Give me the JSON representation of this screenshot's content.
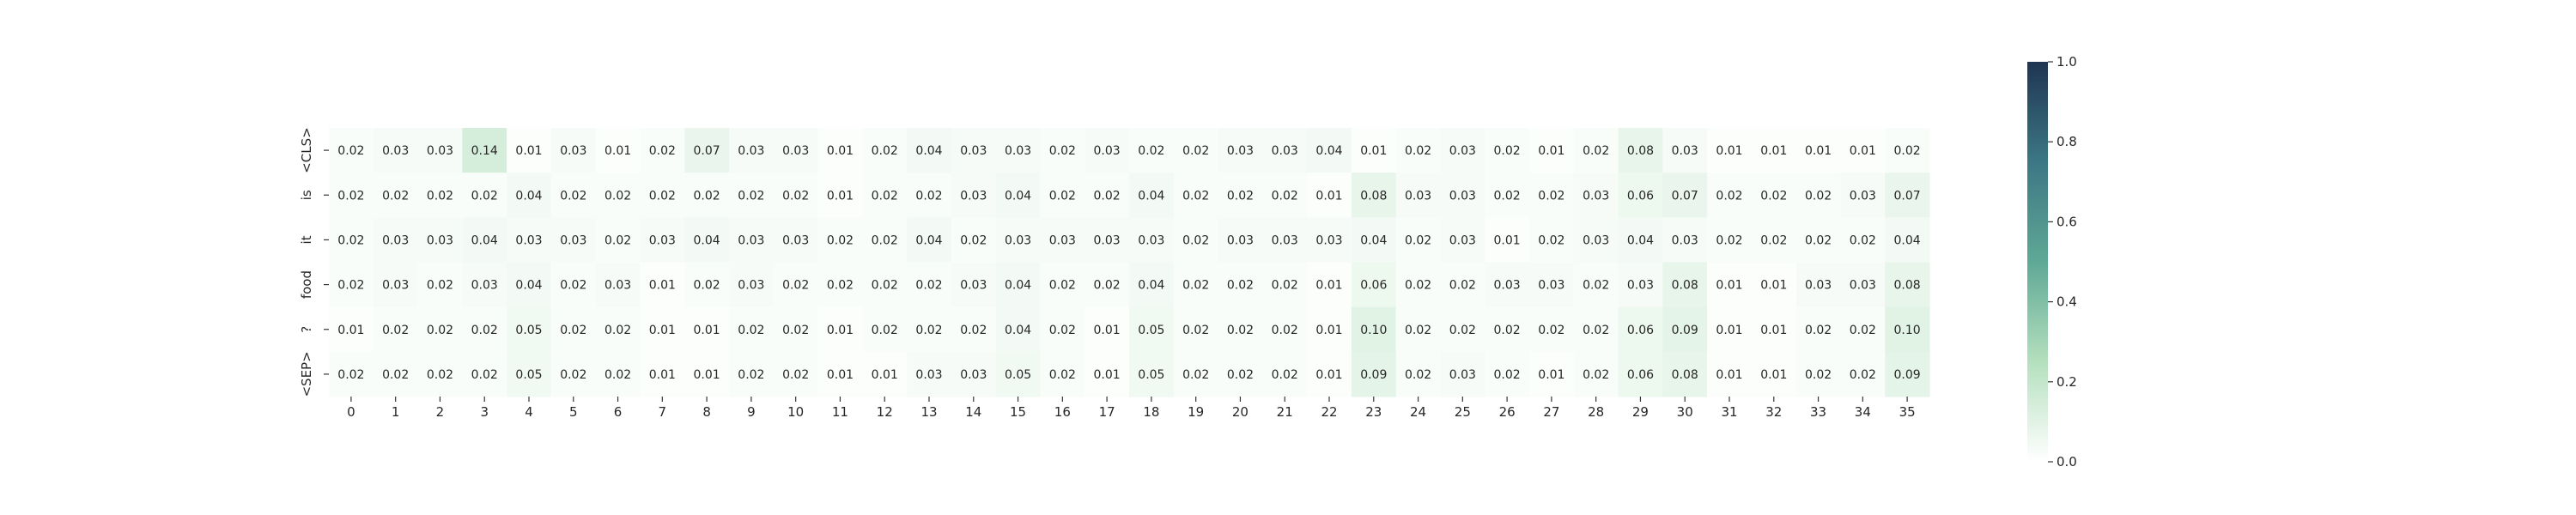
{
  "chart_data": {
    "type": "heatmap",
    "title": "",
    "xlabel": "",
    "ylabel": "",
    "x_labels": [
      "0",
      "1",
      "2",
      "3",
      "4",
      "5",
      "6",
      "7",
      "8",
      "9",
      "10",
      "11",
      "12",
      "13",
      "14",
      "15",
      "16",
      "17",
      "18",
      "19",
      "20",
      "21",
      "22",
      "23",
      "24",
      "25",
      "26",
      "27",
      "28",
      "29",
      "30",
      "31",
      "32",
      "33",
      "34",
      "35"
    ],
    "y_labels": [
      "<CLS>",
      "is",
      "it",
      "food",
      "?",
      "<SEP>"
    ],
    "values": [
      [
        "0.02",
        "0.03",
        "0.03",
        "0.14",
        "0.01",
        "0.03",
        "0.01",
        "0.02",
        "0.07",
        "0.03",
        "0.03",
        "0.01",
        "0.02",
        "0.04",
        "0.03",
        "0.03",
        "0.02",
        "0.03",
        "0.02",
        "0.02",
        "0.03",
        "0.03",
        "0.04",
        "0.01",
        "0.02",
        "0.03",
        "0.02",
        "0.01",
        "0.02",
        "0.08",
        "0.03",
        "0.01",
        "0.01",
        "0.01",
        "0.01",
        "0.02"
      ],
      [
        "0.02",
        "0.02",
        "0.02",
        "0.02",
        "0.04",
        "0.02",
        "0.02",
        "0.02",
        "0.02",
        "0.02",
        "0.02",
        "0.01",
        "0.02",
        "0.02",
        "0.03",
        "0.04",
        "0.02",
        "0.02",
        "0.04",
        "0.02",
        "0.02",
        "0.02",
        "0.01",
        "0.08",
        "0.03",
        "0.03",
        "0.02",
        "0.02",
        "0.03",
        "0.06",
        "0.07",
        "0.02",
        "0.02",
        "0.02",
        "0.03",
        "0.07"
      ],
      [
        "0.02",
        "0.03",
        "0.03",
        "0.04",
        "0.03",
        "0.03",
        "0.02",
        "0.03",
        "0.04",
        "0.03",
        "0.03",
        "0.02",
        "0.02",
        "0.04",
        "0.02",
        "0.03",
        "0.03",
        "0.03",
        "0.03",
        "0.02",
        "0.03",
        "0.03",
        "0.03",
        "0.04",
        "0.02",
        "0.03",
        "0.01",
        "0.02",
        "0.03",
        "0.04",
        "0.03",
        "0.02",
        "0.02",
        "0.02",
        "0.02",
        "0.04"
      ],
      [
        "0.02",
        "0.03",
        "0.02",
        "0.03",
        "0.04",
        "0.02",
        "0.03",
        "0.01",
        "0.02",
        "0.03",
        "0.02",
        "0.02",
        "0.02",
        "0.02",
        "0.03",
        "0.04",
        "0.02",
        "0.02",
        "0.04",
        "0.02",
        "0.02",
        "0.02",
        "0.01",
        "0.06",
        "0.02",
        "0.02",
        "0.03",
        "0.03",
        "0.02",
        "0.03",
        "0.08",
        "0.01",
        "0.01",
        "0.03",
        "0.03",
        "0.08"
      ],
      [
        "0.01",
        "0.02",
        "0.02",
        "0.02",
        "0.05",
        "0.02",
        "0.02",
        "0.01",
        "0.01",
        "0.02",
        "0.02",
        "0.01",
        "0.02",
        "0.02",
        "0.02",
        "0.04",
        "0.02",
        "0.01",
        "0.05",
        "0.02",
        "0.02",
        "0.02",
        "0.01",
        "0.10",
        "0.02",
        "0.02",
        "0.02",
        "0.02",
        "0.02",
        "0.06",
        "0.09",
        "0.01",
        "0.01",
        "0.02",
        "0.02",
        "0.10"
      ],
      [
        "0.02",
        "0.02",
        "0.02",
        "0.02",
        "0.05",
        "0.02",
        "0.02",
        "0.01",
        "0.01",
        "0.02",
        "0.02",
        "0.01",
        "0.01",
        "0.03",
        "0.03",
        "0.05",
        "0.02",
        "0.01",
        "0.05",
        "0.02",
        "0.02",
        "0.02",
        "0.01",
        "0.09",
        "0.02",
        "0.03",
        "0.02",
        "0.01",
        "0.02",
        "0.06",
        "0.08",
        "0.01",
        "0.01",
        "0.02",
        "0.02",
        "0.09"
      ]
    ],
    "colorbar": {
      "min": 0.0,
      "max": 1.0,
      "ticks": [
        "0.0",
        "0.2",
        "0.4",
        "0.6",
        "0.8",
        "1.0"
      ],
      "colors": [
        "#ffffff",
        "#b4e0be",
        "#5fa896",
        "#3c7784",
        "#1f3552"
      ]
    },
    "grid": false,
    "legend": "colorbar-right"
  }
}
